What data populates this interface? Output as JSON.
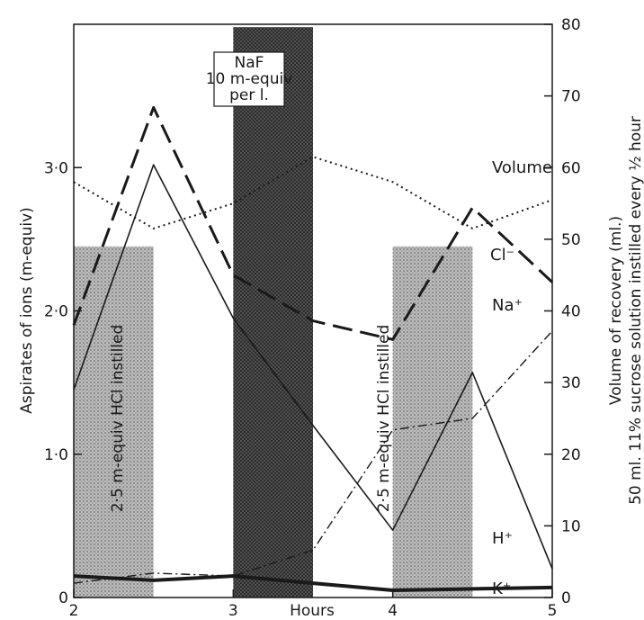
{
  "chart_data": {
    "type": "line",
    "xlabel": "Hours",
    "ylabel_left": "Aspirates of ions (m-equiv)",
    "ylabel_right_line1": "50 ml. 11% sucrose solution instilled every ½ hour",
    "ylabel_right_line2": "Volume of recovery (ml.)",
    "xlim": [
      2,
      5
    ],
    "ylim_left": [
      0,
      4.0
    ],
    "ylim_right": [
      0,
      80
    ],
    "x_ticks": [
      {
        "v": 2,
        "label": "2"
      },
      {
        "v": 3,
        "label": "3"
      },
      {
        "v": 4,
        "label": "4"
      },
      {
        "v": 5,
        "label": "5"
      }
    ],
    "y_ticks_left": [
      {
        "v": 0,
        "label": "0"
      },
      {
        "v": 1,
        "label": "1·0"
      },
      {
        "v": 2,
        "label": "2·0"
      },
      {
        "v": 3,
        "label": "3·0"
      }
    ],
    "y_ticks_right": [
      {
        "v": 0,
        "label": "0"
      },
      {
        "v": 10,
        "label": "10"
      },
      {
        "v": 20,
        "label": "20"
      },
      {
        "v": 30,
        "label": "30"
      },
      {
        "v": 40,
        "label": "40"
      },
      {
        "v": 50,
        "label": "50"
      },
      {
        "v": 60,
        "label": "60"
      },
      {
        "v": 70,
        "label": "70"
      },
      {
        "v": 80,
        "label": "80"
      }
    ],
    "bands": [
      {
        "x0": 2.0,
        "x1": 2.5,
        "top": 2.45,
        "kind": "HCl",
        "text": "2·5 m-equiv HCl instilled"
      },
      {
        "x0": 3.0,
        "x1": 3.5,
        "top": 3.98,
        "kind": "NaF",
        "text": ""
      },
      {
        "x0": 4.0,
        "x1": 4.5,
        "top": 2.45,
        "kind": "HCl",
        "text": "2·5 m-equiv HCl instilled"
      }
    ],
    "naf_box": {
      "line1": "NaF",
      "line2": "10 m-equiv",
      "line3": "per l."
    },
    "series": [
      {
        "name": "Cl⁻",
        "style": "dashed",
        "axis": "left",
        "x": [
          2.0,
          2.5,
          3.0,
          3.5,
          4.0,
          4.5,
          5.0
        ],
        "y": [
          1.9,
          3.42,
          2.25,
          1.93,
          1.8,
          2.72,
          2.2
        ]
      },
      {
        "name": "H⁺",
        "style": "solid",
        "axis": "left",
        "x": [
          2.0,
          2.5,
          3.0,
          3.5,
          4.0,
          4.5,
          5.0
        ],
        "y": [
          1.45,
          3.02,
          1.95,
          1.2,
          0.47,
          1.57,
          0.2
        ]
      },
      {
        "name": "Na⁺",
        "style": "dashdot",
        "axis": "left",
        "x": [
          2.0,
          2.5,
          3.0,
          3.5,
          4.0,
          4.5,
          5.0
        ],
        "y": [
          0.1,
          0.17,
          0.15,
          0.33,
          1.17,
          1.25,
          1.86
        ]
      },
      {
        "name": "K⁺",
        "style": "thick",
        "axis": "left",
        "x": [
          2.0,
          2.5,
          3.0,
          3.5,
          4.0,
          4.5,
          5.0
        ],
        "y": [
          0.15,
          0.12,
          0.15,
          0.1,
          0.05,
          0.06,
          0.07
        ]
      },
      {
        "name": "Volume",
        "style": "dotted",
        "axis": "right",
        "x": [
          2.0,
          2.5,
          3.0,
          3.5,
          4.0,
          4.5,
          5.0
        ],
        "y": [
          58.0,
          51.5,
          55.0,
          61.5,
          58.0,
          51.5,
          55.5
        ]
      }
    ]
  }
}
